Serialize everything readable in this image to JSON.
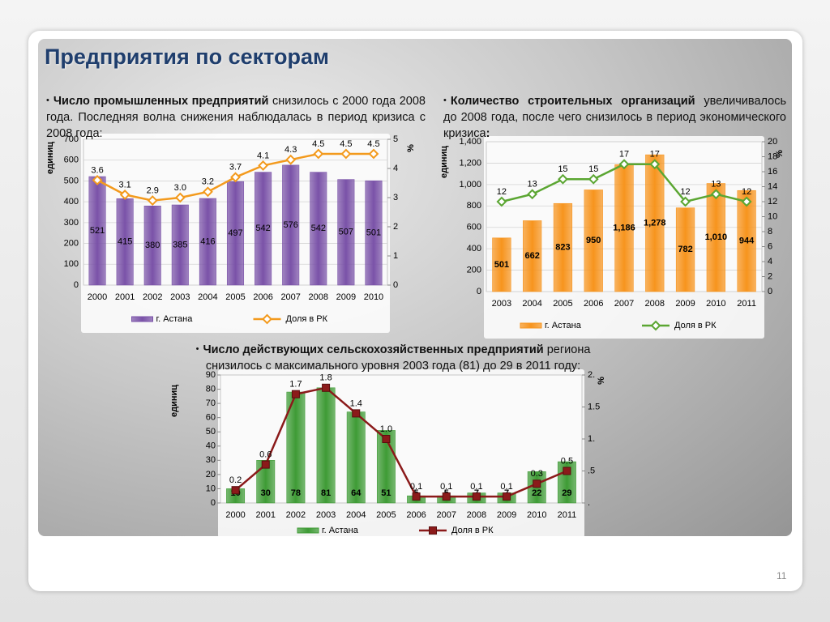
{
  "slide_title": "Предприятия по секторам",
  "page_number": "11",
  "bullets": [
    {
      "bold": "Число промышленных предприятий",
      "text": "снизилось с 2000 года 2008 года. Последняя волна снижения наблюдалась в период кризиса с 2008 года:"
    },
    {
      "bold": "Количество строительных организаций",
      "text": "увеличивалось до 2008 года, после чего снизилось в период экономического кризиса",
      "bold_end": ":"
    },
    {
      "bold": "Число действующих сельскохозяйственных предприятий",
      "text": "региона снизилось с максимального уровня 2003 года (81) до 29 в 2011 году:"
    }
  ],
  "chart_data": [
    {
      "type": "combo",
      "y_label": "единиц",
      "y2_label": "%",
      "grid": true,
      "categories": [
        "2000",
        "2001",
        "2002",
        "2003",
        "2004",
        "2005",
        "2006",
        "2007",
        "2008",
        "2009",
        "2010"
      ],
      "series": [
        {
          "name": "г. Астана",
          "type": "bar",
          "color": "#7a52a8",
          "values": [
            521,
            415,
            380,
            385,
            416,
            497,
            542,
            576,
            542,
            507,
            501
          ]
        },
        {
          "name": "Доля в РК",
          "type": "line",
          "axis": "y2",
          "color": "#f39a1d",
          "marker": "diamond",
          "values": [
            3.6,
            3.1,
            2.9,
            3.0,
            3.2,
            3.7,
            4.1,
            4.3,
            4.5,
            4.5,
            4.5
          ],
          "value_labels": [
            "3.6",
            "3.1",
            "2.9",
            "3.0",
            "3.2",
            "3.7",
            "4.1",
            "4.3",
            "4.5",
            "4.5",
            "4.5"
          ]
        }
      ],
      "ylim": [
        0,
        700
      ],
      "yticks": [
        0,
        100,
        200,
        300,
        400,
        500,
        600,
        700
      ],
      "y2lim": [
        0,
        5
      ],
      "y2ticks": [
        0,
        1,
        2,
        3,
        4,
        5
      ]
    },
    {
      "type": "combo",
      "y_label": "единиц",
      "y2_label": "%",
      "grid": true,
      "categories": [
        "2003",
        "2004",
        "2005",
        "2006",
        "2007",
        "2008",
        "2009",
        "2010",
        "2011"
      ],
      "series": [
        {
          "name": "г. Астана",
          "type": "bar",
          "color": "#f7941d",
          "values": [
            501,
            662,
            823,
            950,
            1186,
            1278,
            782,
            1010,
            944
          ],
          "value_labels": [
            "501",
            "662",
            "823",
            "950",
            "1,186",
            "1,278",
            "782",
            "1,010",
            "944"
          ]
        },
        {
          "name": "Доля в РК",
          "type": "line",
          "axis": "y2",
          "color": "#5ba632",
          "marker": "diamond",
          "values": [
            12,
            13,
            15,
            15,
            17,
            17,
            12,
            13,
            12
          ]
        }
      ],
      "ylim": [
        0,
        1400
      ],
      "yticks": [
        0,
        200,
        400,
        600,
        800,
        {
          "value": 1000,
          "label": "1,000"
        },
        {
          "value": 1200,
          "label": "1,200"
        },
        {
          "value": 1400,
          "label": "1,400"
        }
      ],
      "y2lim": [
        0,
        20
      ],
      "y2ticks": [
        0,
        2,
        4,
        6,
        8,
        10,
        12,
        14,
        16,
        18,
        20
      ]
    },
    {
      "type": "combo",
      "y_label": "единиц",
      "y2_label": "%",
      "grid": false,
      "categories": [
        "2000",
        "2001",
        "2002",
        "2003",
        "2004",
        "2005",
        "2006",
        "2007",
        "2008",
        "2009",
        "2010",
        "2011"
      ],
      "series": [
        {
          "name": "г. Астана",
          "type": "bar",
          "color": "#3e9b35",
          "values": [
            10,
            30,
            78,
            81,
            64,
            51,
            5,
            5,
            7,
            7,
            22,
            29
          ]
        },
        {
          "name": "Доля в РК",
          "type": "line",
          "axis": "y2",
          "color": "#8b1a1a",
          "marker": "square",
          "values": [
            0.2,
            0.6,
            1.7,
            1.8,
            1.4,
            1.0,
            0.1,
            0.1,
            0.1,
            0.1,
            0.3,
            0.5
          ],
          "value_labels": [
            "0.2",
            "0.6",
            "1.7",
            "1.8",
            "1.4",
            "1.0",
            "0.1",
            "0.1",
            "0.1",
            "0.1",
            "0.3",
            "0.5"
          ]
        }
      ],
      "ylim": [
        0,
        90
      ],
      "yticks": [
        0,
        10,
        20,
        30,
        40,
        50,
        60,
        70,
        80,
        90
      ],
      "y2lim": [
        0,
        2
      ],
      "y2ticks": [
        {
          "value": 0,
          "label": "."
        },
        {
          "value": 0.5,
          "label": ".5"
        },
        {
          "value": 1,
          "label": "1."
        },
        1.5,
        {
          "value": 2,
          "label": "2."
        }
      ]
    }
  ]
}
